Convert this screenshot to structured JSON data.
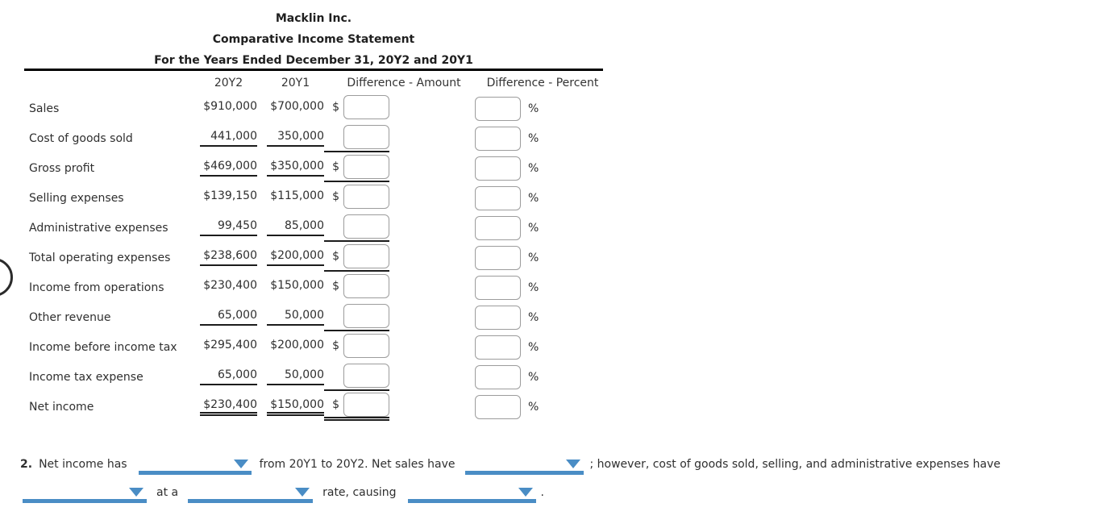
{
  "title": {
    "company": "Macklin Inc.",
    "statement": "Comparative Income Statement",
    "period": "For the Years Ended December 31, 20Y2 and 20Y1"
  },
  "table": {
    "columns": {
      "y2": "20Y2",
      "y1": "20Y1",
      "diff_amount": "Difference - Amount",
      "diff_percent": "Difference - Percent"
    },
    "dollar_prefix": "$",
    "percent_suffix": "%",
    "rows": [
      {
        "label": "Sales",
        "y2": "$910,000",
        "y1": "$700,000",
        "dollar": true,
        "underline": "none",
        "amount_value": "",
        "percent_value": ""
      },
      {
        "label": "Cost of goods sold",
        "y2": "441,000",
        "y1": "350,000",
        "dollar": false,
        "underline": "single",
        "amount_value": "",
        "percent_value": ""
      },
      {
        "label": "Gross profit",
        "y2": "$469,000",
        "y1": "$350,000",
        "dollar": true,
        "underline": "single",
        "amount_value": "",
        "percent_value": ""
      },
      {
        "label": "Selling expenses",
        "y2": "$139,150",
        "y1": "$115,000",
        "dollar": true,
        "underline": "none",
        "amount_value": "",
        "percent_value": ""
      },
      {
        "label": "Administrative expenses",
        "y2": "99,450",
        "y1": "85,000",
        "dollar": false,
        "underline": "single",
        "amount_value": "",
        "percent_value": ""
      },
      {
        "label": "Total operating expenses",
        "y2": "$238,600",
        "y1": "$200,000",
        "dollar": true,
        "underline": "single",
        "amount_value": "",
        "percent_value": ""
      },
      {
        "label": "Income from operations",
        "y2": "$230,400",
        "y1": "$150,000",
        "dollar": true,
        "underline": "none",
        "amount_value": "",
        "percent_value": ""
      },
      {
        "label": "Other revenue",
        "y2": "65,000",
        "y1": "50,000",
        "dollar": false,
        "underline": "single",
        "amount_value": "",
        "percent_value": ""
      },
      {
        "label": "Income before income tax",
        "y2": "$295,400",
        "y1": "$200,000",
        "dollar": true,
        "underline": "none",
        "amount_value": "",
        "percent_value": ""
      },
      {
        "label": "Income tax expense",
        "y2": "65,000",
        "y1": "50,000",
        "dollar": false,
        "underline": "single",
        "amount_value": "",
        "percent_value": ""
      },
      {
        "label": "Net income",
        "y2": "$230,400",
        "y1": "$150,000",
        "dollar": true,
        "underline": "double",
        "amount_value": "",
        "percent_value": ""
      }
    ]
  },
  "question": {
    "number": "2.",
    "t1": "Net income has",
    "t2": "from 20Y1 to 20Y2. Net sales have",
    "t3": "; however, cost of goods sold, selling, and administrative expenses have",
    "t4": "at a",
    "t5": "rate, causing",
    "t6": ".",
    "dropdowns": [
      {
        "id": "net-income-change",
        "value": ""
      },
      {
        "id": "net-sales-change",
        "value": ""
      },
      {
        "id": "expenses-change",
        "value": ""
      },
      {
        "id": "rate-comparison",
        "value": ""
      },
      {
        "id": "causing-effect",
        "value": ""
      }
    ]
  },
  "colors": {
    "dropdown_blue": "#4a8dc5",
    "rule_dark": "#1c1c1c"
  }
}
